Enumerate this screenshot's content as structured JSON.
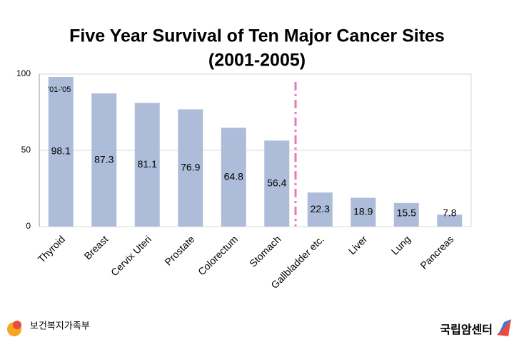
{
  "chart_data": {
    "type": "bar",
    "title": "Five Year Survival of Ten Major Cancer Sites",
    "subtitle": "(2001-2005)",
    "annotation": "'01-'05",
    "categories": [
      "Thyroid",
      "Breast",
      "Cervix Uteri",
      "Prostate",
      "Colorectum",
      "Stomach",
      "Gallbladder etc.",
      "Liver",
      "Lung",
      "Pancreas"
    ],
    "values": [
      98.1,
      87.3,
      81.1,
      76.9,
      64.8,
      56.4,
      22.3,
      18.9,
      15.5,
      7.8
    ],
    "color": "#adbcd8",
    "ylim": [
      0,
      100
    ],
    "yticks": [
      0,
      50,
      100
    ],
    "grid": true
  },
  "footer": {
    "left_logo": "보건복지가족부",
    "right_logo": "국립암센터"
  }
}
